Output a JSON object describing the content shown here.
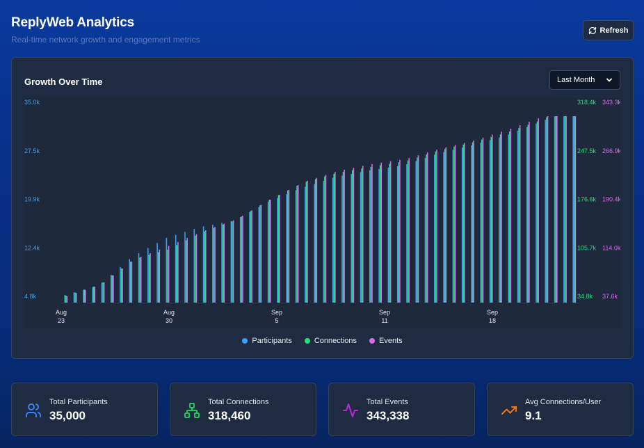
{
  "header": {
    "title": "ReplyWeb Analytics",
    "subtitle": "Real-time network growth and engagement metrics",
    "refresh_label": "Refresh"
  },
  "panel": {
    "title": "Growth Over Time",
    "range_selected": "Last Month"
  },
  "colors": {
    "participants": "#3b9eef",
    "connections": "#22e07a",
    "events": "#d86af0",
    "trend_icon": "#f97316"
  },
  "chart_data": {
    "type": "bar",
    "x_ticks": [
      {
        "line1": "Aug",
        "line2": "23"
      },
      {
        "line1": "Aug",
        "line2": "30"
      },
      {
        "line1": "Sep",
        "line2": "5"
      },
      {
        "line1": "Sep",
        "line2": "11"
      },
      {
        "line1": "Sep",
        "line2": "18"
      }
    ],
    "axes": {
      "participants": {
        "ticks": [
          "35.0k",
          "27.5k",
          "19.9k",
          "12.4k",
          "4.8k"
        ],
        "range": [
          4800,
          35000
        ]
      },
      "connections": {
        "ticks": [
          "318.4k",
          "247.5k",
          "176.6k",
          "105.7k",
          "34.8k"
        ],
        "range": [
          34800,
          318400
        ]
      },
      "events": {
        "ticks": [
          "343.3k",
          "266.9k",
          "190.4k",
          "114.0k",
          "37.6k"
        ],
        "range": [
          37600,
          343300
        ]
      }
    },
    "x_range": [
      "Aug 20",
      "Sep 25"
    ],
    "series": [
      {
        "name": "Participants",
        "color": "#3b9eef",
        "values": [
          5000,
          6500,
          11000,
          13900,
          15600,
          16600,
          19500,
          21700,
          23400,
          24400,
          25200,
          27000,
          28300,
          29800,
          31900,
          33900
        ]
      },
      {
        "name": "Connections",
        "color": "#22e07a",
        "values": [
          36000,
          52000,
          89000,
          103000,
          128000,
          146000,
          176000,
          201000,
          215000,
          224000,
          232000,
          248000,
          260000,
          274000,
          292000,
          316000
        ]
      },
      {
        "name": "Events",
        "color": "#d86af0",
        "values": [
          38000,
          56000,
          96000,
          117000,
          140000,
          159000,
          190000,
          218000,
          235000,
          246000,
          254000,
          270000,
          283000,
          300000,
          320000,
          341000
        ]
      }
    ]
  },
  "legend": [
    {
      "label": "Participants",
      "color": "#3b9eef"
    },
    {
      "label": "Connections",
      "color": "#22e07a"
    },
    {
      "label": "Events",
      "color": "#d86af0"
    }
  ],
  "stats": [
    {
      "label": "Total Participants",
      "value": "35,000",
      "icon": "users-icon",
      "color": "#3b82f6"
    },
    {
      "label": "Total Connections",
      "value": "318,460",
      "icon": "network-icon",
      "color": "#22c55e"
    },
    {
      "label": "Total Events",
      "value": "343,338",
      "icon": "activity-icon",
      "color": "#c026d3"
    },
    {
      "label": "Avg Connections/User",
      "value": "9.1",
      "icon": "trending-up-icon",
      "color": "#f97316"
    }
  ]
}
